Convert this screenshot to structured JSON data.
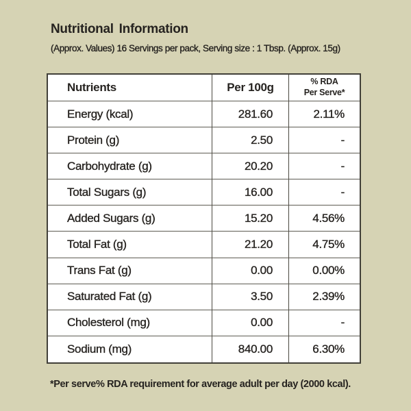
{
  "header": {
    "title": "Nutritional Information",
    "subtitle": "(Approx. Values) 16 Servings per pack, Serving size : 1 Tbsp. (Approx. 15g)"
  },
  "table": {
    "columns": {
      "nutrients": "Nutrients",
      "per_100g": "Per 100g",
      "rda_line1": "% RDA",
      "rda_line2": "Per Serve*"
    },
    "rows": [
      {
        "nutrient": "Energy (kcal)",
        "per_100g": "281.60",
        "rda": "2.11%"
      },
      {
        "nutrient": "Protein (g)",
        "per_100g": "2.50",
        "rda": "-"
      },
      {
        "nutrient": "Carbohydrate (g)",
        "per_100g": "20.20",
        "rda": "-"
      },
      {
        "nutrient": "Total Sugars (g)",
        "per_100g": "16.00",
        "rda": "-"
      },
      {
        "nutrient": "Added Sugars (g)",
        "per_100g": "15.20",
        "rda": "4.56%"
      },
      {
        "nutrient": "Total Fat (g)",
        "per_100g": "21.20",
        "rda": "4.75%"
      },
      {
        "nutrient": "Trans Fat (g)",
        "per_100g": "0.00",
        "rda": "0.00%"
      },
      {
        "nutrient": "Saturated Fat (g)",
        "per_100g": "3.50",
        "rda": "2.39%"
      },
      {
        "nutrient": "Cholesterol (mg)",
        "per_100g": "0.00",
        "rda": "-"
      },
      {
        "nutrient": "Sodium (mg)",
        "per_100g": "840.00",
        "rda": "6.30%"
      }
    ]
  },
  "footer": {
    "note": "*Per serve% RDA requirement for average adult per day (2000 kcal)."
  },
  "colors": {
    "background": "#d6d3b4",
    "table_background": "#ffffff",
    "text": "#262320",
    "border_outer": "#413f38",
    "border_inner": "#5d5b52"
  }
}
